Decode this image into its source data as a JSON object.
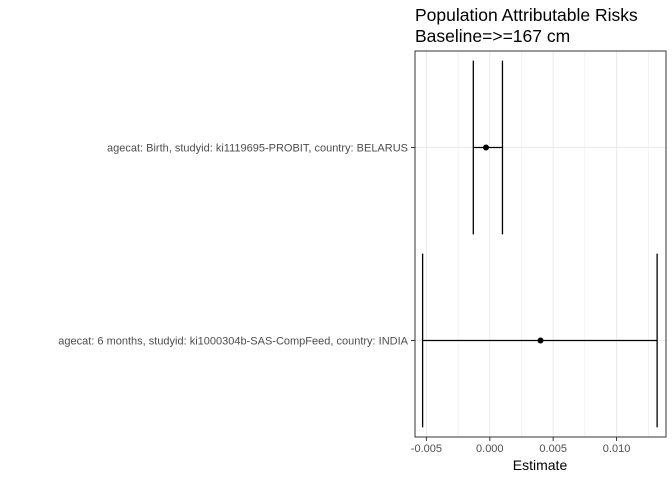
{
  "chart_data": {
    "type": "scatter",
    "title": "Population Attributable Risks",
    "subtitle": "Baseline=>=167 cm",
    "xlabel": "Estimate",
    "ylabel": "",
    "xlim": [
      -0.0059,
      0.0139
    ],
    "x_ticks": [
      -0.005,
      0.0,
      0.005,
      0.01
    ],
    "x_tick_labels": [
      "-0.005",
      "0.000",
      "0.005",
      "0.010"
    ],
    "grid": true,
    "categories": [
      "agecat: Birth, studyid: ki1119695-PROBIT, country: BELARUS",
      "agecat: 6 months, studyid: ki1000304b-SAS-CompFeed, country: INDIA"
    ],
    "points": [
      {
        "label": "agecat: Birth, studyid: ki1119695-PROBIT, country: BELARUS",
        "estimate": -0.0003,
        "lower": -0.0013,
        "upper": 0.001
      },
      {
        "label": "agecat: 6 months, studyid: ki1000304b-SAS-CompFeed, country: INDIA",
        "estimate": 0.004,
        "lower": -0.0053,
        "upper": 0.0132
      }
    ],
    "colors": {
      "line": "#000000",
      "point": "#000000",
      "grid": "#ebebeb",
      "panel_border": "#333333",
      "tick_text": "#4d4d4d"
    }
  }
}
